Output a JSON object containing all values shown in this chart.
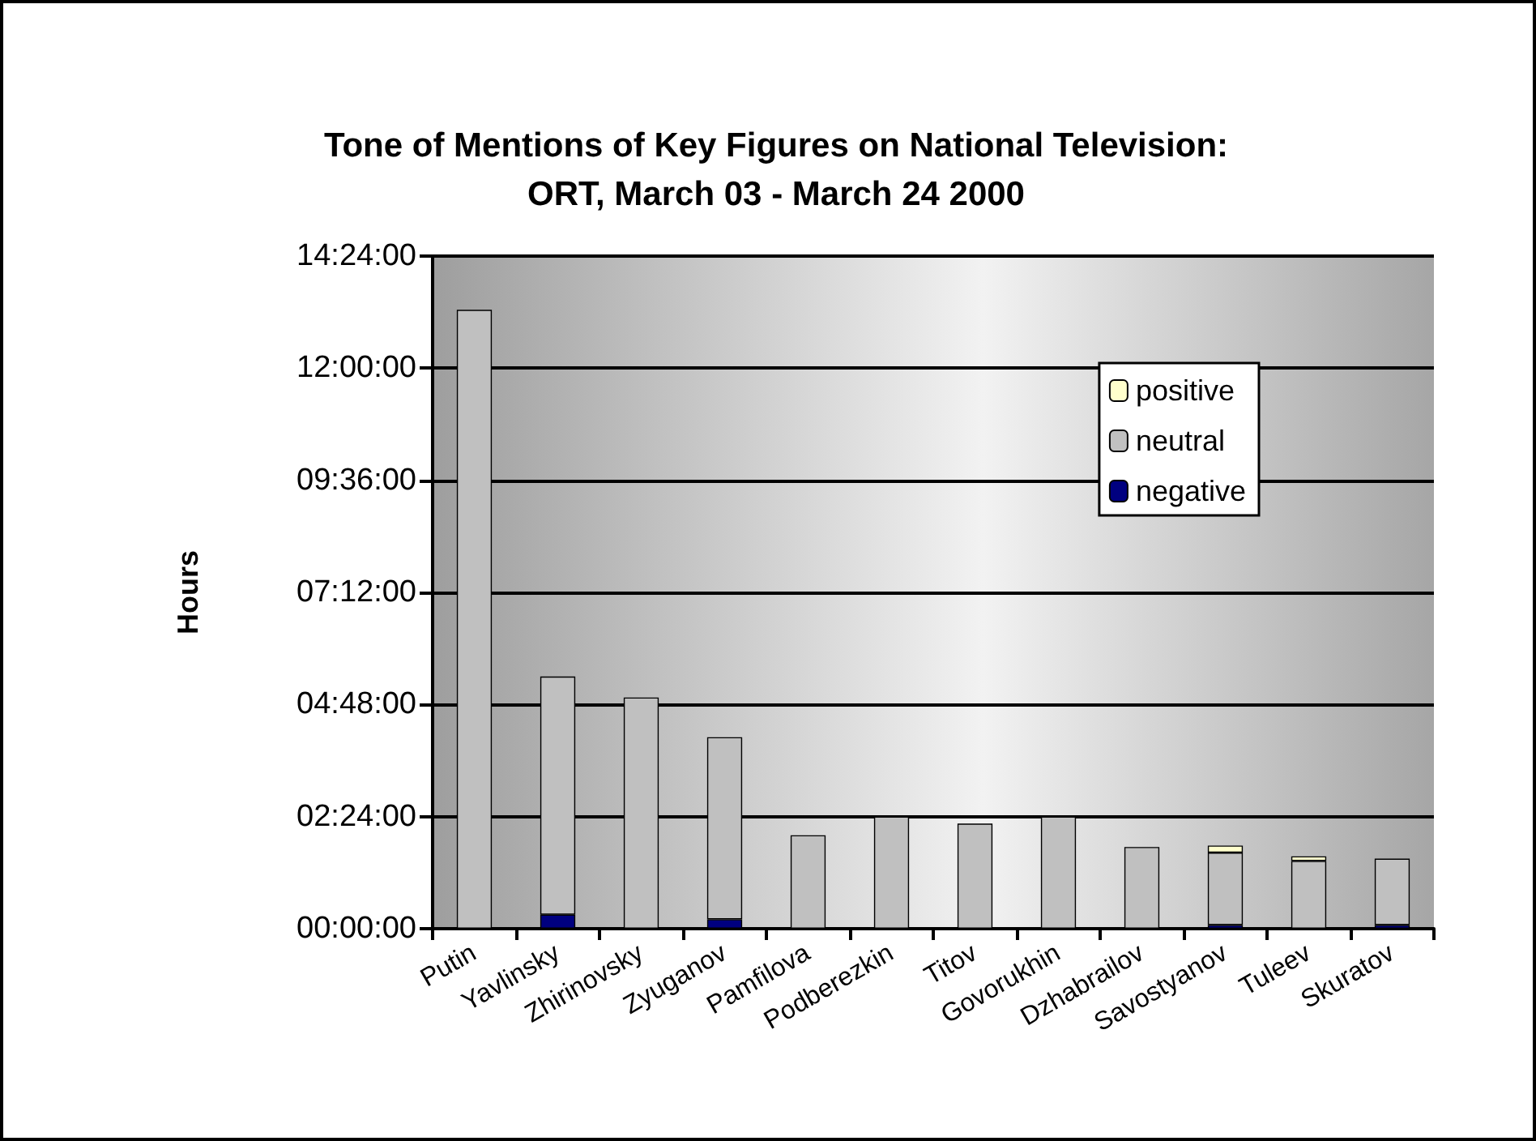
{
  "chart_data": {
    "type": "bar",
    "stacked": true,
    "title": "Tone of Mentions of Key Figures on National Television:\nORT, March 03 - March 24 2000",
    "ylabel": "Hours",
    "categories": [
      "Putin",
      "Yavlinsky",
      "Zhirinovsky",
      "Zyuganov",
      "Pamfilova",
      "Podberezkin",
      "Titov",
      "Govorukhin",
      "Dzhabrailov",
      "Savostyanov",
      "Tuleev",
      "Skuratov"
    ],
    "series": [
      {
        "name": "negative",
        "color": "#000080",
        "values": [
          0,
          0.3,
          0,
          0.2,
          0,
          0,
          0,
          0,
          0,
          0.08,
          0,
          0.08
        ]
      },
      {
        "name": "neutral",
        "color": "#c0c0c0",
        "values": [
          13.25,
          5.1,
          4.95,
          3.9,
          2.0,
          2.4,
          2.25,
          2.4,
          1.75,
          1.55,
          1.45,
          1.42
        ]
      },
      {
        "name": "positive",
        "color": "#ffffcc",
        "values": [
          0,
          0,
          0,
          0,
          0,
          0,
          0,
          0,
          0,
          0.15,
          0.1,
          0
        ]
      }
    ],
    "ylim": [
      0,
      14.4
    ],
    "yticks": [
      {
        "value": 0,
        "label": "00:00:00"
      },
      {
        "value": 2.4,
        "label": "02:24:00"
      },
      {
        "value": 4.8,
        "label": "04:48:00"
      },
      {
        "value": 7.2,
        "label": "07:12:00"
      },
      {
        "value": 9.6,
        "label": "09:36:00"
      },
      {
        "value": 12,
        "label": "12:00:00"
      },
      {
        "value": 14.4,
        "label": "14:24:00"
      }
    ],
    "grid": "y",
    "legend": "top right"
  }
}
